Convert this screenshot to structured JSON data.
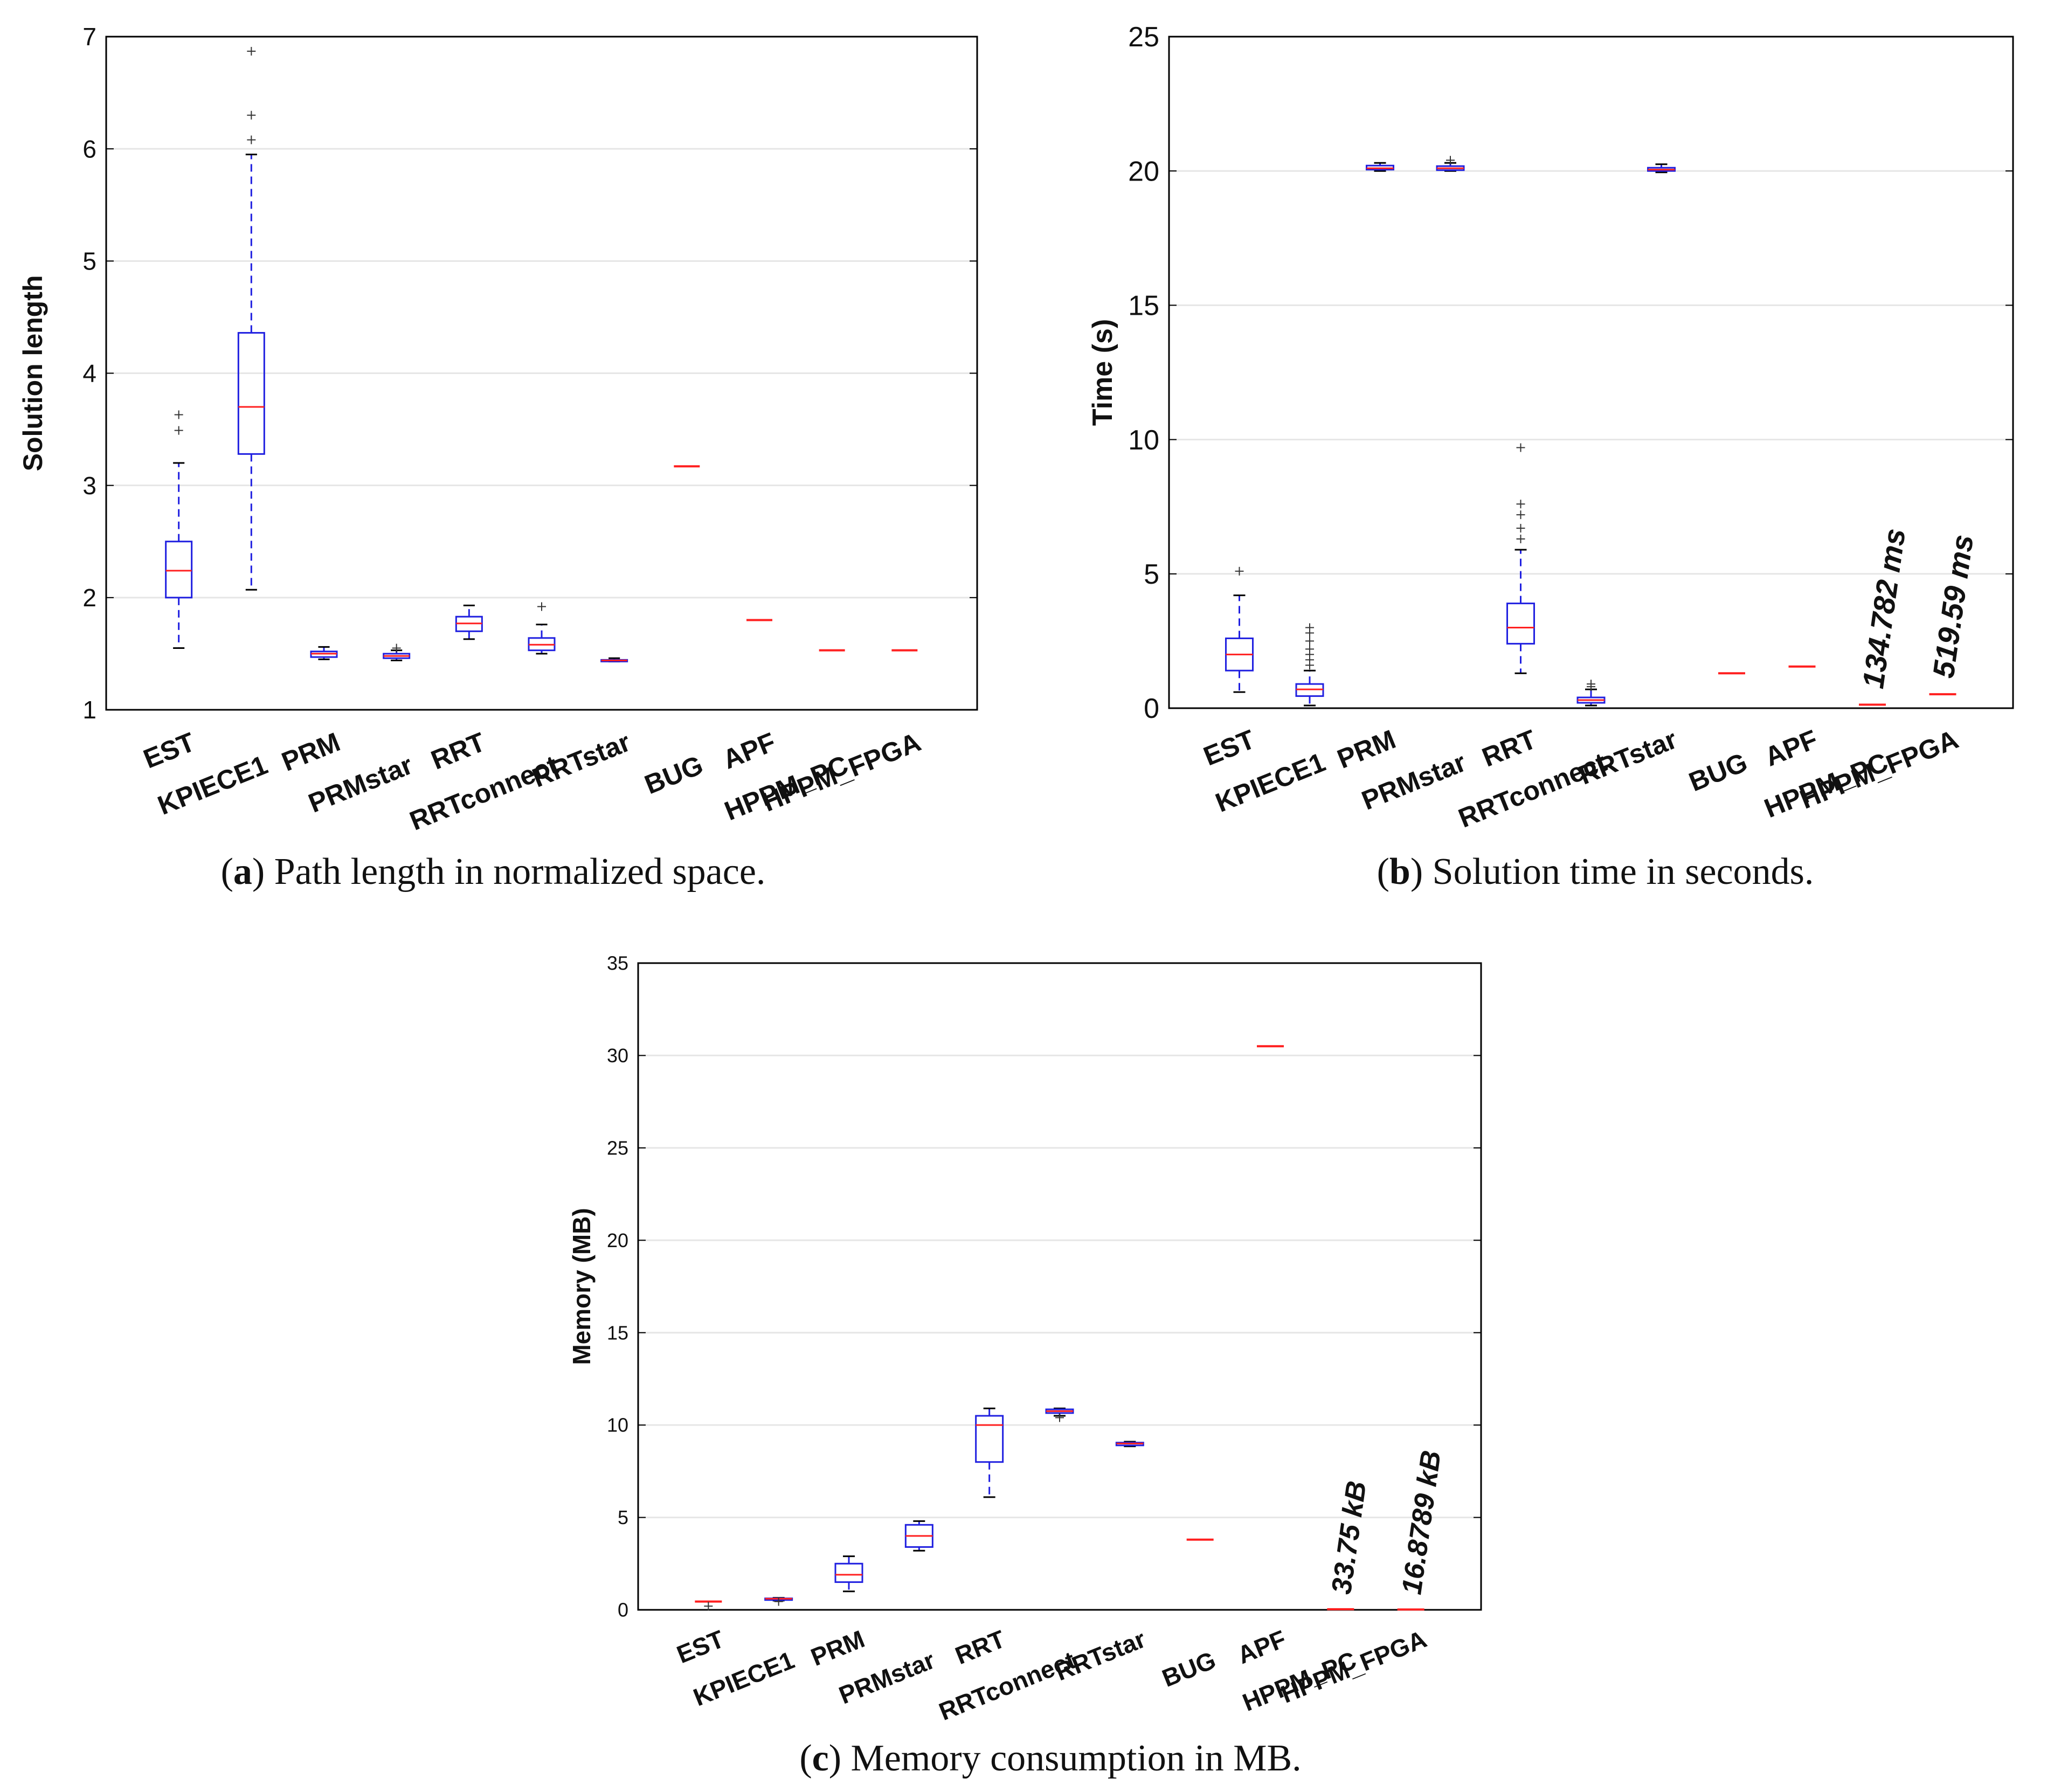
{
  "chart_data": [
    {
      "type": "box",
      "panel": "a",
      "caption_letter": "a",
      "caption_text": ") Path length in normalized space.",
      "ylabel": "Solution length",
      "ylim": [
        1,
        7
      ],
      "yticks": [
        "1",
        "2",
        "3",
        "4",
        "5",
        "6",
        "7"
      ],
      "categories": [
        "EST",
        "KPIECE1",
        "PRM",
        "PRMstar",
        "RRT",
        "RRTconnect",
        "RRTstar",
        "BUG",
        "APF",
        "HPPM_PC",
        "HPPM_FPGA"
      ],
      "boxes": [
        {
          "name": "EST",
          "whislo": 1.55,
          "q1": 2.0,
          "med": 2.24,
          "q3": 2.5,
          "whishi": 3.2,
          "fliers": [
            3.49,
            3.63
          ]
        },
        {
          "name": "KPIECE1",
          "whislo": 2.07,
          "q1": 3.28,
          "med": 3.7,
          "q3": 4.36,
          "whishi": 5.95,
          "fliers": [
            6.08,
            6.3,
            6.87
          ]
        },
        {
          "name": "PRM",
          "whislo": 1.45,
          "q1": 1.47,
          "med": 1.5,
          "q3": 1.52,
          "whishi": 1.56,
          "fliers": []
        },
        {
          "name": "PRMstar",
          "whislo": 1.44,
          "q1": 1.46,
          "med": 1.48,
          "q3": 1.5,
          "whishi": 1.53,
          "fliers": [
            1.55
          ]
        },
        {
          "name": "RRT",
          "whislo": 1.63,
          "q1": 1.7,
          "med": 1.77,
          "q3": 1.83,
          "whishi": 1.93,
          "fliers": []
        },
        {
          "name": "RRTconnect",
          "whislo": 1.5,
          "q1": 1.53,
          "med": 1.58,
          "q3": 1.64,
          "whishi": 1.76,
          "fliers": [
            1.92
          ]
        },
        {
          "name": "RRTstar",
          "whislo": 1.43,
          "q1": 1.435,
          "med": 1.44,
          "q3": 1.445,
          "whishi": 1.46,
          "fliers": []
        },
        {
          "name": "BUG",
          "whislo": 3.17,
          "q1": 3.17,
          "med": 3.17,
          "q3": 3.17,
          "whishi": 3.17,
          "fliers": []
        },
        {
          "name": "APF",
          "whislo": 1.8,
          "q1": 1.8,
          "med": 1.8,
          "q3": 1.8,
          "whishi": 1.8,
          "fliers": []
        },
        {
          "name": "HPPM_PC",
          "whislo": 1.53,
          "q1": 1.53,
          "med": 1.53,
          "q3": 1.53,
          "whishi": 1.53,
          "fliers": []
        },
        {
          "name": "HPPM_FPGA",
          "whislo": 1.53,
          "q1": 1.53,
          "med": 1.53,
          "q3": 1.53,
          "whishi": 1.53,
          "fliers": []
        }
      ],
      "annotations": []
    },
    {
      "type": "box",
      "panel": "b",
      "caption_letter": "b",
      "caption_text": ") Solution time in seconds.",
      "ylabel": "Time (s)",
      "ylim": [
        0,
        25
      ],
      "yticks": [
        "0",
        "5",
        "10",
        "15",
        "20",
        "25"
      ],
      "categories": [
        "EST",
        "KPIECE1",
        "PRM",
        "PRMstar",
        "RRT",
        "RRTconnect",
        "RRTstar",
        "BUG",
        "APF",
        "HPPM_PC",
        "HPPM_FPGA"
      ],
      "boxes": [
        {
          "name": "EST",
          "whislo": 0.6,
          "q1": 1.4,
          "med": 2.0,
          "q3": 2.6,
          "whishi": 4.2,
          "fliers": [
            5.1
          ]
        },
        {
          "name": "KPIECE1",
          "whislo": 0.1,
          "q1": 0.45,
          "med": 0.7,
          "q3": 0.9,
          "whishi": 1.4,
          "fliers": [
            1.6,
            1.8,
            2.0,
            2.2,
            2.5,
            2.8,
            3.0
          ]
        },
        {
          "name": "PRM",
          "whislo": 20.0,
          "q1": 20.05,
          "med": 20.1,
          "q3": 20.2,
          "whishi": 20.3,
          "fliers": []
        },
        {
          "name": "PRMstar",
          "whislo": 20.0,
          "q1": 20.03,
          "med": 20.1,
          "q3": 20.18,
          "whishi": 20.3,
          "fliers": [
            20.4
          ]
        },
        {
          "name": "RRT",
          "whislo": 1.3,
          "q1": 2.4,
          "med": 3.0,
          "q3": 3.9,
          "whishi": 5.9,
          "fliers": [
            6.3,
            6.7,
            7.2,
            7.6,
            9.7
          ]
        },
        {
          "name": "RRTconnect",
          "whislo": 0.1,
          "q1": 0.2,
          "med": 0.3,
          "q3": 0.4,
          "whishi": 0.7,
          "fliers": [
            0.8,
            0.9
          ]
        },
        {
          "name": "RRTstar",
          "whislo": 19.95,
          "q1": 20.0,
          "med": 20.05,
          "q3": 20.12,
          "whishi": 20.25,
          "fliers": []
        },
        {
          "name": "BUG",
          "whislo": 1.3,
          "q1": 1.3,
          "med": 1.3,
          "q3": 1.3,
          "whishi": 1.3,
          "fliers": []
        },
        {
          "name": "APF",
          "whislo": 1.55,
          "q1": 1.55,
          "med": 1.55,
          "q3": 1.55,
          "whishi": 1.55,
          "fliers": []
        },
        {
          "name": "HPPM_PC",
          "whislo": 0.13,
          "q1": 0.13,
          "med": 0.13,
          "q3": 0.13,
          "whishi": 0.13,
          "fliers": []
        },
        {
          "name": "HPPM_FPGA",
          "whislo": 0.52,
          "q1": 0.52,
          "med": 0.52,
          "q3": 0.52,
          "whishi": 0.52,
          "fliers": []
        }
      ],
      "annotations": [
        {
          "category": "HPPM_PC",
          "text": "134.782 ms"
        },
        {
          "category": "HPPM_FPGA",
          "text": "519.59 ms"
        }
      ]
    },
    {
      "type": "box",
      "panel": "c",
      "caption_letter": "c",
      "caption_text": ") Memory consumption in MB.",
      "ylabel": "Memory (MB)",
      "ylim": [
        0,
        35
      ],
      "yticks": [
        "0",
        "5",
        "10",
        "15",
        "20",
        "25",
        "30",
        "35"
      ],
      "categories": [
        "EST",
        "KPIECE1",
        "PRM",
        "PRMstar",
        "RRT",
        "RRTconnect",
        "RRTstar",
        "BUG",
        "APF",
        "HPPM_PC",
        "HPPM_FPGA"
      ],
      "boxes": [
        {
          "name": "EST",
          "whislo": 0.45,
          "q1": 0.45,
          "med": 0.45,
          "q3": 0.45,
          "whishi": 0.45,
          "fliers": [
            0.2
          ]
        },
        {
          "name": "KPIECE1",
          "whislo": 0.5,
          "q1": 0.55,
          "med": 0.6,
          "q3": 0.62,
          "whishi": 0.65,
          "fliers": [
            0.45
          ]
        },
        {
          "name": "PRM",
          "whislo": 1.0,
          "q1": 1.5,
          "med": 1.9,
          "q3": 2.5,
          "whishi": 2.9,
          "fliers": []
        },
        {
          "name": "PRMstar",
          "whislo": 3.2,
          "q1": 3.4,
          "med": 4.0,
          "q3": 4.6,
          "whishi": 4.8,
          "fliers": []
        },
        {
          "name": "RRT",
          "whislo": 6.1,
          "q1": 8.0,
          "med": 10.0,
          "q3": 10.5,
          "whishi": 10.9,
          "fliers": []
        },
        {
          "name": "RRTconnect",
          "whislo": 10.5,
          "q1": 10.65,
          "med": 10.75,
          "q3": 10.85,
          "whishi": 10.9,
          "fliers": [
            10.4
          ]
        },
        {
          "name": "RRTstar",
          "whislo": 8.85,
          "q1": 8.9,
          "med": 9.0,
          "q3": 9.05,
          "whishi": 9.1,
          "fliers": []
        },
        {
          "name": "BUG",
          "whislo": 3.8,
          "q1": 3.8,
          "med": 3.8,
          "q3": 3.8,
          "whishi": 3.8,
          "fliers": []
        },
        {
          "name": "APF",
          "whislo": 30.5,
          "q1": 30.5,
          "med": 30.5,
          "q3": 30.5,
          "whishi": 30.5,
          "fliers": []
        },
        {
          "name": "HPPM_PC",
          "whislo": 0.03375,
          "q1": 0.03375,
          "med": 0.03375,
          "q3": 0.03375,
          "whishi": 0.03375,
          "fliers": []
        },
        {
          "name": "HPPM_FPGA",
          "whislo": 0.0168789,
          "q1": 0.0168789,
          "med": 0.0168789,
          "q3": 0.0168789,
          "whishi": 0.0168789,
          "fliers": []
        }
      ],
      "annotations": [
        {
          "category": "HPPM_PC",
          "text": "33.75 kB"
        },
        {
          "category": "HPPM_FPGA",
          "text": "16.8789 kB"
        }
      ]
    }
  ],
  "colors": {
    "box": "#2020e0",
    "median": "#ff2020",
    "whisker_cap": "#000000",
    "flier": "#333333",
    "grid": "#e6e6e6"
  }
}
